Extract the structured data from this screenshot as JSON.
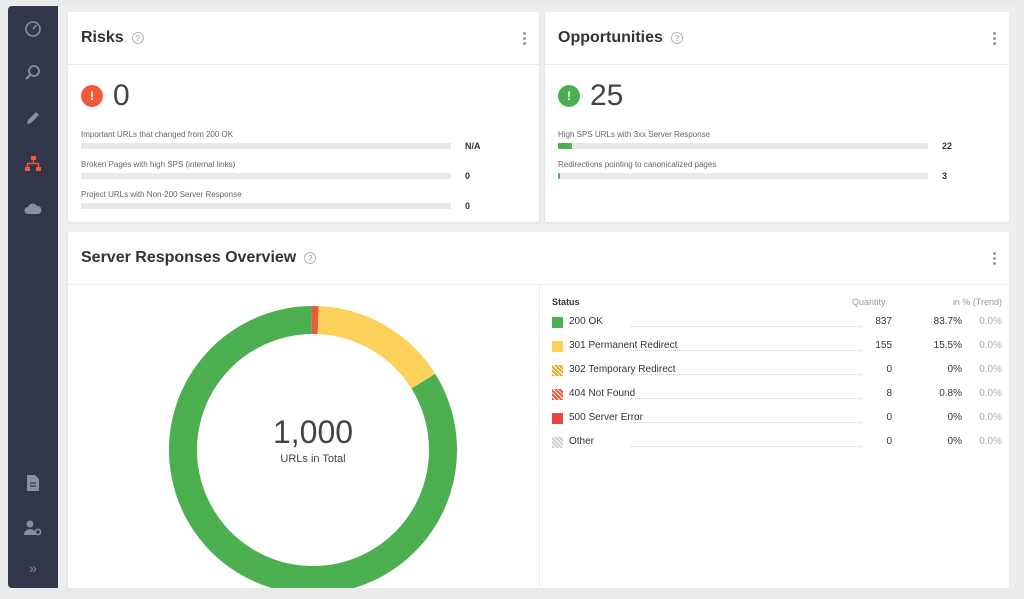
{
  "risks": {
    "title": "Risks",
    "help": "?",
    "count": "0",
    "badge": "!",
    "color": "#f05a3a",
    "metrics": [
      {
        "label": "Important URLs that changed from 200 OK",
        "value": "N/A",
        "fill": 0
      },
      {
        "label": "Broken Pages with high SPS (internal links)",
        "value": "0",
        "fill": 0
      },
      {
        "label": "Project URLs with Non-200 Server Response",
        "value": "0",
        "fill": 0
      }
    ]
  },
  "opportunities": {
    "title": "Opportunities",
    "help": "?",
    "count": "25",
    "badge": "!",
    "color": "#4caf50",
    "metrics": [
      {
        "label": "High SPS URLs with 3xx Server Response",
        "value": "22",
        "fill": 0.04
      },
      {
        "label": "Redirections pointing to canonicalized pages",
        "value": "3",
        "fill": 0.005
      }
    ]
  },
  "server": {
    "title": "Server Responses Overview",
    "help": "?",
    "total": "1,000",
    "total_label": "URLs in Total",
    "headers": {
      "status": "Status",
      "quantity": "Quantity",
      "percent": "in % (Trend)"
    },
    "rows": [
      {
        "label": "200 OK",
        "qty": "837",
        "pct": "83.7%",
        "trend": "0.0%",
        "color": "#4caf50",
        "pattern": "solid",
        "share": 83.7
      },
      {
        "label": "301 Permanent Redirect",
        "qty": "155",
        "pct": "15.5%",
        "trend": "0.0%",
        "color": "#fbd159",
        "pattern": "solid",
        "share": 15.5
      },
      {
        "label": "302 Temporary Redirect",
        "qty": "0",
        "pct": "0%",
        "trend": "0.0%",
        "color": "#f7a823",
        "pattern": "striped",
        "share": 0
      },
      {
        "label": "404 Not Found",
        "qty": "8",
        "pct": "0.8%",
        "trend": "0.0%",
        "color": "#f05a3a",
        "pattern": "striped",
        "share": 0.8
      },
      {
        "label": "500 Server Error",
        "qty": "0",
        "pct": "0%",
        "trend": "0.0%",
        "color": "#e9473a",
        "pattern": "solid",
        "share": 0
      },
      {
        "label": "Other",
        "qty": "0",
        "pct": "0%",
        "trend": "0.0%",
        "color": "#cfcfcf",
        "pattern": "striped",
        "share": 0
      }
    ]
  },
  "sidebar": {
    "items": [
      {
        "icon": "speedometer-icon"
      },
      {
        "icon": "search-analytics-icon"
      },
      {
        "icon": "pencil-icon"
      },
      {
        "icon": "sitemap-icon",
        "active": true
      },
      {
        "icon": "cloud-icon"
      },
      {
        "icon": "document-icon"
      },
      {
        "icon": "user-settings-icon"
      },
      {
        "icon": "expand-icon",
        "glyph": "»"
      }
    ]
  },
  "colors": {
    "sidebar": "#32364b",
    "active_icon": "#f05a3a",
    "icon": "#8a8ea3"
  }
}
